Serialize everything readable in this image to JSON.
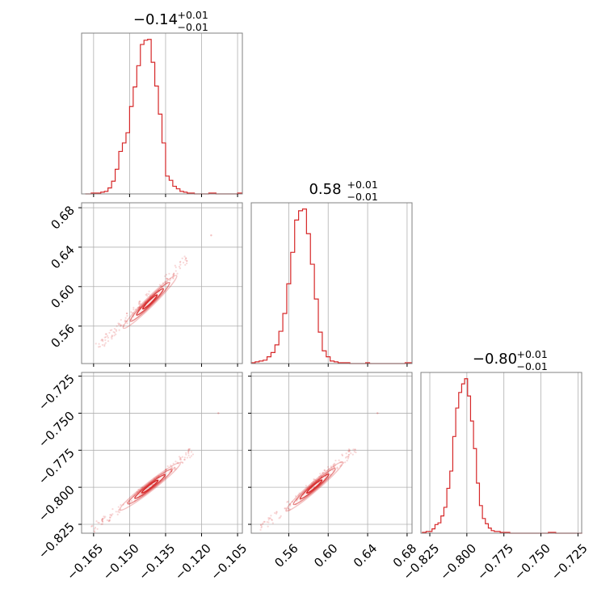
{
  "figure": {
    "type": "corner-plot",
    "line_color": "#d62728",
    "grid_color": "#b0b0b0",
    "frame_color": "#808080"
  },
  "chart_data": [
    {
      "type": "histogram",
      "parameter_index": 0,
      "title": {
        "median": "−0.14",
        "plus": "+0.01",
        "minus": "−0.01"
      },
      "xlim": [
        -0.17,
        -0.103
      ],
      "x_ticks": [
        -0.165,
        -0.15,
        -0.135,
        -0.12,
        -0.105
      ],
      "x_tick_labels": [
        "−0.165",
        "−0.150",
        "−0.135",
        "−0.120",
        "−0.105"
      ],
      "bins": [
        -0.1685,
        -0.166,
        -0.164,
        -0.162,
        -0.1605,
        -0.159,
        -0.1575,
        -0.156,
        -0.1545,
        -0.153,
        -0.1515,
        -0.15,
        -0.1485,
        -0.147,
        -0.1455,
        -0.144,
        -0.1425,
        -0.141,
        -0.1395,
        -0.138,
        -0.1365,
        -0.135,
        -0.1335,
        -0.132,
        -0.1305,
        -0.129,
        -0.1275,
        -0.126,
        -0.1245,
        -0.123,
        -0.12,
        -0.117,
        -0.114,
        -0.111,
        -0.108,
        -0.105,
        -0.103
      ],
      "counts": [
        0,
        1,
        1,
        2,
        3,
        7,
        15,
        29,
        50,
        60,
        72,
        103,
        126,
        151,
        176,
        181,
        182,
        155,
        127,
        94,
        60,
        21,
        16,
        9,
        6,
        3,
        2,
        1,
        1,
        0,
        0,
        1,
        0,
        0,
        0,
        1
      ]
    },
    {
      "type": "histogram",
      "parameter_index": 1,
      "title": {
        "median": "0.58",
        "plus": "+0.01",
        "minus": "−0.01"
      },
      "xlim": [
        0.522,
        0.685
      ],
      "x_ticks": [
        0.56,
        0.6,
        0.64,
        0.68
      ],
      "x_tick_labels": [
        "0.56",
        "0.60",
        "0.64",
        "0.68"
      ],
      "bins": [
        0.522,
        0.526,
        0.53,
        0.534,
        0.538,
        0.542,
        0.546,
        0.55,
        0.554,
        0.558,
        0.562,
        0.566,
        0.57,
        0.574,
        0.578,
        0.582,
        0.586,
        0.59,
        0.594,
        0.598,
        0.602,
        0.606,
        0.61,
        0.614,
        0.618,
        0.622,
        0.626,
        0.63,
        0.634,
        0.638,
        0.642,
        0.646,
        0.65,
        0.654,
        0.658,
        0.662,
        0.666,
        0.67,
        0.674,
        0.678,
        0.685
      ],
      "counts": [
        1,
        2,
        3,
        4,
        8,
        13,
        22,
        38,
        59,
        94,
        131,
        169,
        180,
        182,
        153,
        117,
        76,
        37,
        15,
        8,
        3,
        2,
        1,
        1,
        1,
        0,
        0,
        0,
        0,
        1,
        0,
        0,
        0,
        0,
        0,
        0,
        0,
        0,
        0,
        1
      ]
    },
    {
      "type": "histogram",
      "parameter_index": 2,
      "title": {
        "median": "−0.80",
        "plus": "+0.01",
        "minus": "−0.01"
      },
      "xlim": [
        -0.831,
        -0.7225
      ],
      "x_ticks": [
        -0.825,
        -0.8,
        -0.775,
        -0.75,
        -0.725
      ],
      "x_tick_labels": [
        "−0.825",
        "−0.800",
        "−0.775",
        "−0.750",
        "−0.725"
      ],
      "bins": [
        -0.83,
        -0.8275,
        -0.8255,
        -0.8235,
        -0.8215,
        -0.8195,
        -0.8175,
        -0.8155,
        -0.8135,
        -0.8115,
        -0.8095,
        -0.8075,
        -0.8055,
        -0.8035,
        -0.8015,
        -0.7995,
        -0.7975,
        -0.7955,
        -0.7935,
        -0.7915,
        -0.7895,
        -0.7875,
        -0.7855,
        -0.7835,
        -0.7815,
        -0.7795,
        -0.7775,
        -0.7755,
        -0.774,
        -0.771,
        -0.768,
        -0.765,
        -0.762,
        -0.759,
        -0.756,
        -0.753,
        -0.75,
        -0.745,
        -0.74,
        -0.735,
        -0.73,
        -0.7225
      ],
      "counts": [
        1,
        2,
        2,
        5,
        10,
        12,
        20,
        30,
        52,
        72,
        112,
        145,
        163,
        173,
        179,
        159,
        130,
        98,
        58,
        32,
        17,
        11,
        6,
        3,
        2,
        2,
        1,
        1,
        1,
        0,
        0,
        0,
        0,
        0,
        0,
        0,
        0,
        1,
        0,
        0,
        0,
        1
      ]
    },
    {
      "type": "contour",
      "x_parameter_index": 0,
      "y_parameter_index": 1,
      "xlim": [
        -0.17,
        -0.103
      ],
      "ylim": [
        0.522,
        0.685
      ],
      "x_ticks": [
        -0.165,
        -0.15,
        -0.135,
        -0.12,
        -0.105
      ],
      "y_ticks": [
        0.56,
        0.6,
        0.64,
        0.68
      ],
      "y_tick_labels": [
        "0.56",
        "0.60",
        "0.64",
        "0.68"
      ],
      "center": [
        -0.1415,
        0.5845
      ],
      "correlation_axis": [
        -0.163,
        0.539,
        -0.126,
        0.628
      ],
      "outliers": [
        [
          -0.116,
          0.652
        ]
      ]
    },
    {
      "type": "contour",
      "x_parameter_index": 0,
      "y_parameter_index": 2,
      "xlim": [
        -0.17,
        -0.103
      ],
      "ylim": [
        -0.831,
        -0.7225
      ],
      "x_ticks": [
        -0.165,
        -0.15,
        -0.135,
        -0.12,
        -0.105
      ],
      "y_ticks": [
        -0.825,
        -0.8,
        -0.775,
        -0.75,
        -0.725
      ],
      "y_tick_labels": [
        "−0.825",
        "−0.800",
        "−0.775",
        "−0.750",
        "−0.725"
      ],
      "center": [
        -0.1415,
        -0.7995
      ],
      "correlation_axis": [
        -0.166,
        -0.829,
        -0.124,
        -0.776
      ],
      "outliers": [
        [
          -0.113,
          -0.75
        ]
      ]
    },
    {
      "type": "contour",
      "x_parameter_index": 1,
      "y_parameter_index": 2,
      "xlim": [
        0.522,
        0.685
      ],
      "ylim": [
        -0.831,
        -0.7225
      ],
      "x_ticks": [
        0.56,
        0.6,
        0.64,
        0.68
      ],
      "y_ticks": [
        -0.825,
        -0.8,
        -0.775,
        -0.75,
        -0.725
      ],
      "center": [
        0.586,
        -0.7995
      ],
      "correlation_axis": [
        0.531,
        -0.829,
        0.627,
        -0.774
      ],
      "outliers": [
        [
          0.65,
          -0.75
        ]
      ]
    }
  ]
}
